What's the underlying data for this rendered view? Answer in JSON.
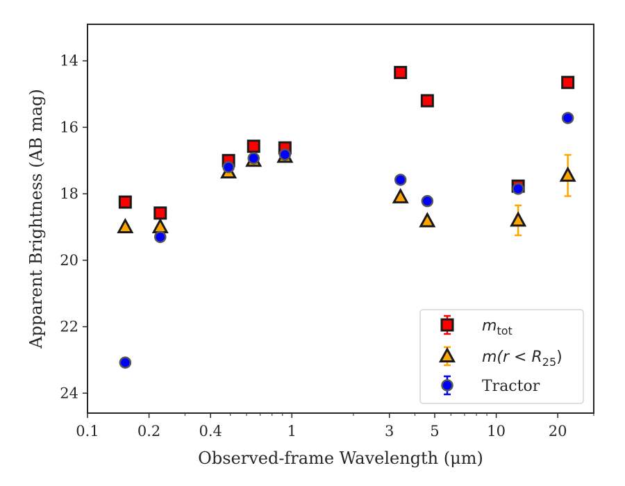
{
  "chart_data": {
    "type": "scatter",
    "title": "",
    "xlabel": "Observed-frame Wavelength (μm)",
    "ylabel": "Apparent Brightness (AB mag)",
    "xscale": "log",
    "xlim": [
      0.1,
      30
    ],
    "ylim": [
      24.6,
      12.9
    ],
    "y_inverted": true,
    "x_ticks": [
      0.1,
      0.2,
      0.4,
      1,
      3,
      5,
      10,
      20
    ],
    "x_tick_labels": [
      "0.1",
      "0.2",
      "0.4",
      "1",
      "3",
      "5",
      "10",
      "20"
    ],
    "y_ticks": [
      14,
      16,
      18,
      20,
      22,
      24
    ],
    "y_tick_labels": [
      "14",
      "16",
      "18",
      "20",
      "22",
      "24"
    ],
    "grid": false,
    "legend_position": "bottom-right",
    "series": [
      {
        "name": "m_tot",
        "label_base": "m",
        "label_sub": "tot",
        "marker": "square",
        "color": "#ff0000",
        "edge_color": "#1a1a1a",
        "errorbar_color": "#ff0000",
        "points": [
          {
            "x": 0.153,
            "y": 18.25,
            "yerr": 0.05
          },
          {
            "x": 0.227,
            "y": 18.58,
            "yerr": 0.05
          },
          {
            "x": 0.49,
            "y": 17.0,
            "yerr": 0.03
          },
          {
            "x": 0.65,
            "y": 16.57,
            "yerr": 0.03
          },
          {
            "x": 0.925,
            "y": 16.62,
            "yerr": 0.03
          },
          {
            "x": 3.4,
            "y": 14.35,
            "yerr": 0.03
          },
          {
            "x": 4.6,
            "y": 15.2,
            "yerr": 0.03
          },
          {
            "x": 12.8,
            "y": 17.77,
            "yerr": 0.05
          },
          {
            "x": 22.4,
            "y": 14.65,
            "yerr": 0.05
          }
        ]
      },
      {
        "name": "m(r < R_25)",
        "label_base": "m(r < R",
        "label_sub": "25",
        "label_end": ")",
        "marker": "triangle",
        "color": "#ffa500",
        "edge_color": "#1a1a1a",
        "errorbar_color": "#ffa500",
        "points": [
          {
            "x": 0.153,
            "y": 19.0,
            "yerr": 0.05
          },
          {
            "x": 0.227,
            "y": 19.0,
            "yerr": 0.05
          },
          {
            "x": 0.49,
            "y": 17.35,
            "yerr": 0.03
          },
          {
            "x": 0.65,
            "y": 17.0,
            "yerr": 0.03
          },
          {
            "x": 0.925,
            "y": 16.88,
            "yerr": 0.03
          },
          {
            "x": 3.4,
            "y": 18.1,
            "yerr": 0.05
          },
          {
            "x": 4.6,
            "y": 18.82,
            "yerr": 0.05
          },
          {
            "x": 12.8,
            "y": 18.8,
            "yerr": 0.45
          },
          {
            "x": 22.4,
            "y": 17.45,
            "yerr": 0.62
          }
        ]
      },
      {
        "name": "Tractor",
        "label_base": "Tractor",
        "marker": "circle",
        "color": "#0000ff",
        "edge_color": "#555555",
        "errorbar_color": "#0000ff",
        "points": [
          {
            "x": 0.153,
            "y": 23.08,
            "yerr": 0.05
          },
          {
            "x": 0.227,
            "y": 19.3,
            "yerr": 0.05
          },
          {
            "x": 0.49,
            "y": 17.2,
            "yerr": 0.03
          },
          {
            "x": 0.65,
            "y": 16.93,
            "yerr": 0.03
          },
          {
            "x": 0.925,
            "y": 16.82,
            "yerr": 0.03
          },
          {
            "x": 3.4,
            "y": 17.58,
            "yerr": 0.03
          },
          {
            "x": 4.6,
            "y": 18.22,
            "yerr": 0.03
          },
          {
            "x": 12.8,
            "y": 17.85,
            "yerr": 0.05
          },
          {
            "x": 22.4,
            "y": 15.72,
            "yerr": 0.05
          }
        ]
      }
    ]
  }
}
